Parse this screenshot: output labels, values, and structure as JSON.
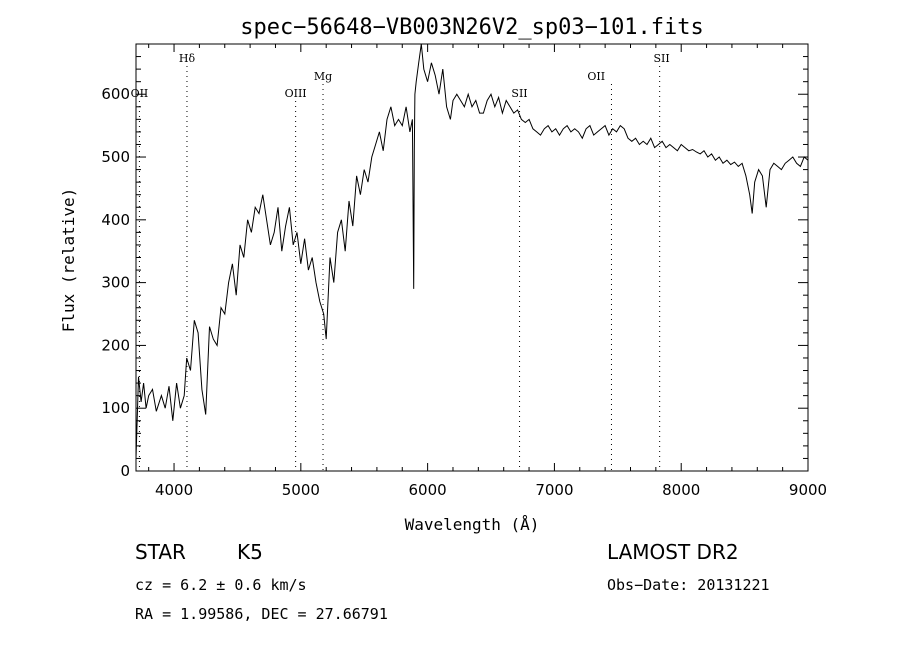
{
  "chart_data": {
    "type": "line",
    "title": "spec−56648−VB003N26V2_sp03−101.fits",
    "xlabel": "Wavelength (Å)",
    "ylabel": "Flux (relative)",
    "xlim": [
      3700,
      9000
    ],
    "ylim": [
      0,
      680
    ],
    "xticks": [
      4000,
      5000,
      6000,
      7000,
      8000,
      9000
    ],
    "yticks": [
      0,
      100,
      200,
      300,
      400,
      500,
      600
    ],
    "grid": false,
    "legend": "none",
    "line_color": "#000000",
    "series": [
      {
        "x": [
          3700,
          3720,
          3740,
          3760,
          3780,
          3800,
          3830,
          3860,
          3900,
          3930,
          3960,
          3990,
          4020,
          4050,
          4080,
          4100,
          4130,
          4160,
          4190,
          4220,
          4250,
          4280,
          4310,
          4340,
          4370,
          4400,
          4430,
          4460,
          4490,
          4520,
          4550,
          4580,
          4610,
          4640,
          4670,
          4700,
          4730,
          4760,
          4790,
          4820,
          4850,
          4880,
          4910,
          4940,
          4970,
          5000,
          5030,
          5060,
          5090,
          5120,
          5150,
          5180,
          5200,
          5230,
          5260,
          5290,
          5320,
          5350,
          5380,
          5410,
          5440,
          5470,
          5500,
          5530,
          5560,
          5590,
          5620,
          5650,
          5680,
          5710,
          5740,
          5770,
          5800,
          5830,
          5860,
          5880,
          5890,
          5895,
          5900,
          5910,
          5930,
          5950,
          5970,
          6000,
          6030,
          6060,
          6090,
          6120,
          6150,
          6180,
          6200,
          6230,
          6260,
          6290,
          6320,
          6350,
          6380,
          6410,
          6440,
          6470,
          6500,
          6530,
          6560,
          6590,
          6620,
          6650,
          6680,
          6710,
          6740,
          6770,
          6800,
          6830,
          6860,
          6890,
          6920,
          6950,
          6980,
          7010,
          7040,
          7070,
          7100,
          7130,
          7160,
          7190,
          7220,
          7250,
          7280,
          7310,
          7340,
          7370,
          7400,
          7430,
          7460,
          7490,
          7520,
          7550,
          7580,
          7610,
          7640,
          7670,
          7700,
          7730,
          7760,
          7790,
          7820,
          7850,
          7880,
          7910,
          7940,
          7970,
          8000,
          8030,
          8060,
          8090,
          8120,
          8150,
          8180,
          8210,
          8240,
          8270,
          8300,
          8330,
          8360,
          8390,
          8420,
          8450,
          8480,
          8510,
          8540,
          8560,
          8580,
          8610,
          8640,
          8670,
          8700,
          8730,
          8760,
          8790,
          8820,
          8850,
          8880,
          8910,
          8940,
          8970,
          9000
        ],
        "y": [
          20,
          150,
          110,
          140,
          100,
          120,
          130,
          95,
          120,
          100,
          135,
          80,
          140,
          100,
          120,
          180,
          160,
          240,
          220,
          130,
          90,
          230,
          210,
          200,
          260,
          250,
          300,
          330,
          280,
          360,
          340,
          400,
          380,
          420,
          410,
          440,
          400,
          360,
          380,
          420,
          350,
          390,
          420,
          360,
          380,
          330,
          370,
          320,
          340,
          300,
          270,
          250,
          210,
          340,
          300,
          380,
          400,
          350,
          430,
          390,
          470,
          440,
          480,
          460,
          500,
          520,
          540,
          510,
          560,
          580,
          550,
          560,
          550,
          580,
          540,
          560,
          290,
          510,
          600,
          620,
          650,
          680,
          640,
          620,
          650,
          630,
          600,
          640,
          580,
          560,
          590,
          600,
          590,
          580,
          600,
          580,
          590,
          570,
          570,
          590,
          600,
          580,
          595,
          570,
          590,
          580,
          570,
          575,
          560,
          555,
          560,
          545,
          540,
          535,
          545,
          550,
          540,
          545,
          535,
          545,
          550,
          540,
          545,
          540,
          530,
          545,
          550,
          535,
          540,
          545,
          550,
          535,
          545,
          540,
          550,
          545,
          530,
          525,
          530,
          520,
          525,
          520,
          530,
          515,
          520,
          525,
          515,
          520,
          515,
          510,
          520,
          515,
          510,
          512,
          508,
          505,
          510,
          500,
          505,
          495,
          500,
          490,
          495,
          488,
          492,
          485,
          490,
          470,
          440,
          410,
          460,
          480,
          470,
          420,
          480,
          490,
          485,
          480,
          490,
          495,
          500,
          490,
          485,
          500,
          495
        ]
      }
    ],
    "annotations": [
      {
        "label": "OII",
        "x": 3727,
        "row": "low"
      },
      {
        "label": "Hδ",
        "x": 4102,
        "row": "high"
      },
      {
        "label": "OIII",
        "x": 4959,
        "row": "low"
      },
      {
        "label": "Mg",
        "x": 5175,
        "row": "mid"
      },
      {
        "label": "SII",
        "x": 6725,
        "row": "low"
      },
      {
        "label": "OII",
        "x": 7330,
        "row": "mid",
        "line_x": 7450
      },
      {
        "label": "SII",
        "x": 7845,
        "row": "high",
        "line_x": 7830
      }
    ]
  },
  "info": {
    "object_class": "STAR",
    "subclass": "K5",
    "survey": "LAMOST DR2",
    "cz": "cz = 6.2 ± 0.6 km/s",
    "obs_date": "Obs−Date: 20131221",
    "coords": "RA =    1.99586, DEC =   27.66791"
  }
}
